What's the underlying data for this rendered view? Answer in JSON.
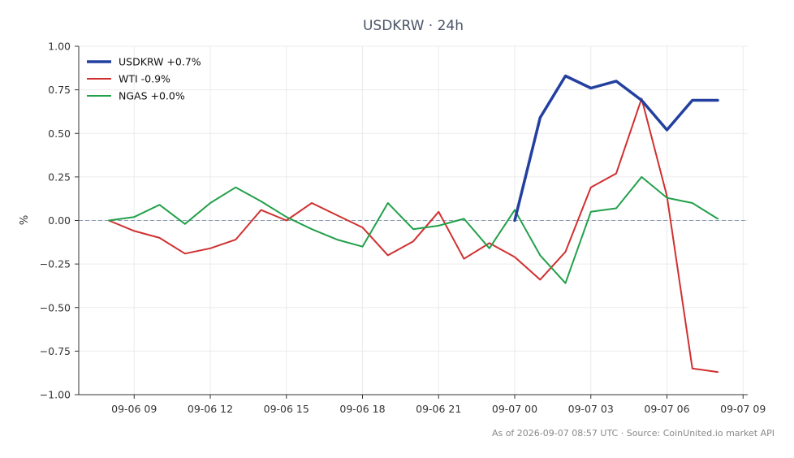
{
  "chart_data": {
    "type": "line",
    "title": "USDKRW · 24h",
    "ylabel": "%",
    "xlabel": "",
    "ylim": [
      -1.0,
      1.0
    ],
    "yticks": [
      "1.00",
      "0.75",
      "0.50",
      "0.25",
      "0.00",
      "−0.25",
      "−0.50",
      "−0.75",
      "−1.00"
    ],
    "xticks": [
      "09-06 09",
      "09-06 12",
      "09-06 15",
      "09-06 18",
      "09-06 21",
      "09-07 00",
      "09-07 03",
      "09-07 06",
      "09-07 09"
    ],
    "grid": true,
    "legend_position": "top-left",
    "zero_line": true,
    "series": [
      {
        "name": "USDKRW +0.7%",
        "color": "#2340a0",
        "x": [
          "09-07 00",
          "09-07 01",
          "09-07 02",
          "09-07 03",
          "09-07 04",
          "09-07 05",
          "09-07 06",
          "09-07 07",
          "09-07 08"
        ],
        "values": [
          0.0,
          0.59,
          0.83,
          0.76,
          0.8,
          0.69,
          0.52,
          0.69,
          0.69
        ]
      },
      {
        "name": "WTI -0.9%",
        "color": "#d03030",
        "x": [
          "09-06 08",
          "09-06 09",
          "09-06 10",
          "09-06 11",
          "09-06 12",
          "09-06 13",
          "09-06 14",
          "09-06 15",
          "09-06 16",
          "09-06 17",
          "09-06 18",
          "09-06 19",
          "09-06 20",
          "09-06 21",
          "09-06 22",
          "09-06 23",
          "09-07 00",
          "09-07 01",
          "09-07 02",
          "09-07 03",
          "09-07 04",
          "09-07 05",
          "09-07 06",
          "09-07 07",
          "09-07 08"
        ],
        "values": [
          0.0,
          -0.06,
          -0.1,
          -0.19,
          -0.16,
          -0.11,
          0.06,
          0.0,
          0.1,
          0.03,
          -0.04,
          -0.2,
          -0.12,
          0.05,
          -0.22,
          -0.13,
          -0.21,
          -0.34,
          -0.18,
          0.19,
          0.27,
          0.7,
          0.14,
          -0.85,
          -0.87
        ]
      },
      {
        "name": "NGAS +0.0%",
        "color": "#22a04a",
        "x": [
          "09-06 08",
          "09-06 09",
          "09-06 10",
          "09-06 11",
          "09-06 12",
          "09-06 13",
          "09-06 14",
          "09-06 15",
          "09-06 16",
          "09-06 17",
          "09-06 18",
          "09-06 19",
          "09-06 20",
          "09-06 21",
          "09-06 22",
          "09-06 23",
          "09-07 00",
          "09-07 01",
          "09-07 02",
          "09-07 03",
          "09-07 04",
          "09-07 05",
          "09-07 06",
          "09-07 07",
          "09-07 08"
        ],
        "values": [
          0.0,
          0.02,
          0.09,
          -0.02,
          0.1,
          0.19,
          0.11,
          0.02,
          -0.05,
          -0.11,
          -0.15,
          0.1,
          -0.05,
          -0.03,
          0.01,
          -0.16,
          0.06,
          -0.2,
          -0.36,
          0.05,
          0.07,
          0.25,
          0.13,
          0.1,
          0.01
        ]
      }
    ]
  },
  "footer": "As of 2026-09-07 08:57 UTC · Source: CoinUnited.io market API"
}
